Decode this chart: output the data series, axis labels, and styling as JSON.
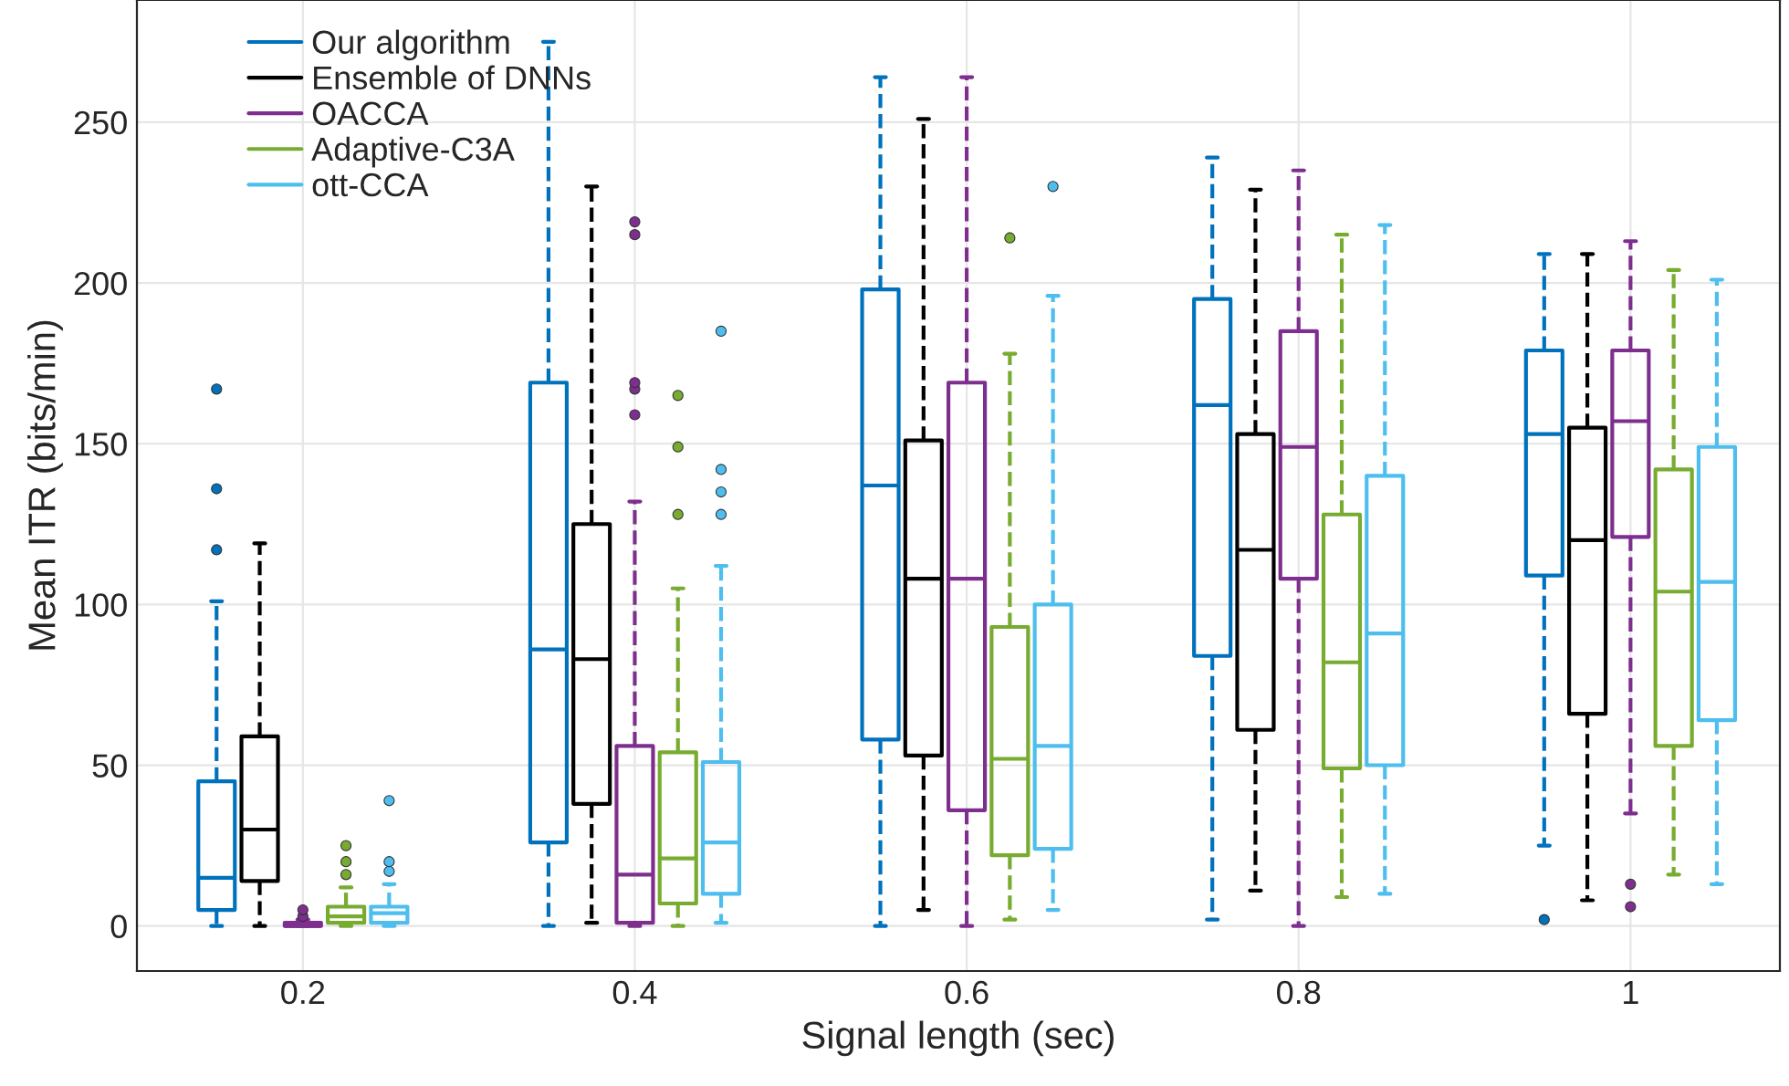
{
  "chart_data": {
    "type": "box",
    "xlabel": "Signal length (sec)",
    "ylabel": "Mean ITR (bits/min)",
    "categories": [
      "0.2",
      "0.4",
      "0.6",
      "0.8",
      "1"
    ],
    "ylim": [
      -14,
      288
    ],
    "yticks": [
      0,
      50,
      100,
      150,
      200,
      250
    ],
    "grid": true,
    "legend": "top left",
    "line_style": "dashed",
    "series": [
      {
        "name": "Our algorithm",
        "color": "#0072bd",
        "boxes": [
          {
            "low": 0,
            "q1": 5,
            "median": 15,
            "q3": 45,
            "high": 101,
            "outliers": [
              117,
              136,
              167
            ]
          },
          {
            "low": 0,
            "q1": 26,
            "median": 86,
            "q3": 169,
            "high": 275
          },
          {
            "low": 0,
            "q1": 58,
            "median": 137,
            "q3": 198,
            "high": 264
          },
          {
            "low": 2,
            "q1": 84,
            "median": 162,
            "q3": 195,
            "high": 239
          },
          {
            "low": 25,
            "q1": 109,
            "median": 153,
            "q3": 179,
            "high": 209,
            "outliers": [
              2
            ]
          }
        ]
      },
      {
        "name": "Ensemble of DNNs",
        "color": "#000000",
        "boxes": [
          {
            "low": 0,
            "q1": 14,
            "median": 30,
            "q3": 59,
            "high": 119
          },
          {
            "low": 1,
            "q1": 38,
            "median": 83,
            "q3": 125,
            "high": 230
          },
          {
            "low": 5,
            "q1": 53,
            "median": 108,
            "q3": 151,
            "high": 251
          },
          {
            "low": 11,
            "q1": 61,
            "median": 117,
            "q3": 153,
            "high": 229
          },
          {
            "low": 8,
            "q1": 66,
            "median": 120,
            "q3": 155,
            "high": 209
          }
        ]
      },
      {
        "name": "OACCA",
        "color": "#7e2f8e",
        "boxes": [
          {
            "low": 0,
            "q1": 0,
            "median": 0,
            "q3": 1,
            "high": 2,
            "outliers": [
              3,
              5
            ]
          },
          {
            "low": 0,
            "q1": 1,
            "median": 16,
            "q3": 56,
            "high": 132,
            "outliers": [
              159,
              167,
              169,
              215,
              219
            ]
          },
          {
            "low": 0,
            "q1": 36,
            "median": 108,
            "q3": 169,
            "high": 264
          },
          {
            "low": 0,
            "q1": 108,
            "median": 149,
            "q3": 185,
            "high": 235
          },
          {
            "low": 35,
            "q1": 121,
            "median": 157,
            "q3": 179,
            "high": 213,
            "outliers": [
              6,
              13
            ]
          }
        ]
      },
      {
        "name": "Adaptive-C3A",
        "color": "#77ac30",
        "boxes": [
          {
            "low": 0,
            "q1": 1,
            "median": 3,
            "q3": 6,
            "high": 12,
            "outliers": [
              16,
              20,
              25
            ]
          },
          {
            "low": 0,
            "q1": 7,
            "median": 21,
            "q3": 54,
            "high": 105,
            "outliers": [
              128,
              149,
              165
            ]
          },
          {
            "low": 2,
            "q1": 22,
            "median": 52,
            "q3": 93,
            "high": 178,
            "outliers": [
              214
            ]
          },
          {
            "low": 9,
            "q1": 49,
            "median": 82,
            "q3": 128,
            "high": 215
          },
          {
            "low": 16,
            "q1": 56,
            "median": 104,
            "q3": 142,
            "high": 204
          }
        ]
      },
      {
        "name": "ott-CCA",
        "color": "#4dbeee",
        "boxes": [
          {
            "low": 0,
            "q1": 1,
            "median": 4,
            "q3": 6,
            "high": 13,
            "outliers": [
              17,
              20,
              39
            ]
          },
          {
            "low": 1,
            "q1": 10,
            "median": 26,
            "q3": 51,
            "high": 112,
            "outliers": [
              128,
              135,
              142,
              185
            ]
          },
          {
            "low": 5,
            "q1": 24,
            "median": 56,
            "q3": 100,
            "high": 196,
            "outliers": [
              230
            ]
          },
          {
            "low": 10,
            "q1": 50,
            "median": 91,
            "q3": 140,
            "high": 218
          },
          {
            "low": 13,
            "q1": 64,
            "median": 107,
            "q3": 149,
            "high": 201
          }
        ]
      }
    ]
  }
}
